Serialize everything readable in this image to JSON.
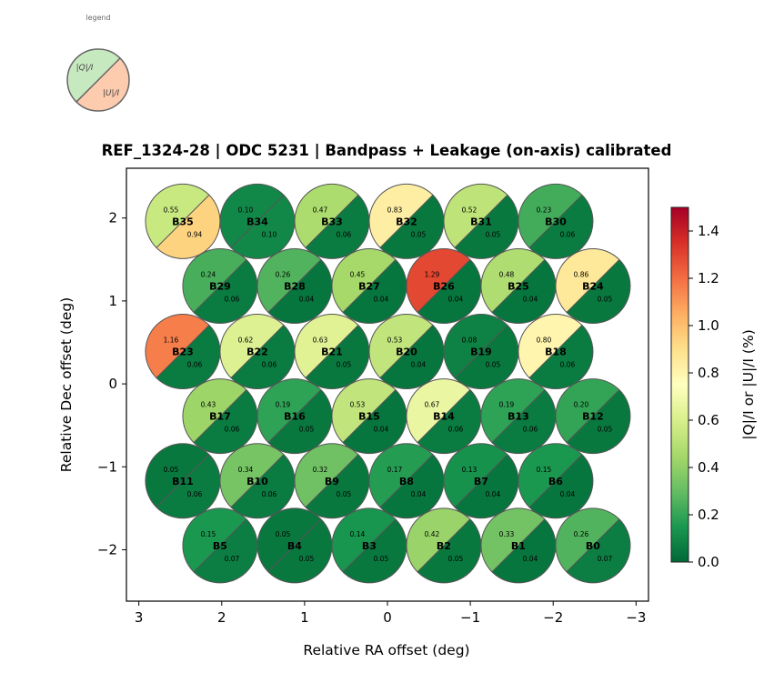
{
  "chart_data": {
    "type": "scatter",
    "title": "REF_1324-28  |  ODC 5231  |  Bandpass + Leakage (on-axis) calibrated",
    "xlabel": "Relative RA offset (deg)",
    "ylabel": "Relative Dec offset (deg)",
    "xlim": [
      3.15,
      -3.15
    ],
    "ylim": [
      -2.62,
      2.6
    ],
    "xticks": [
      3,
      2,
      1,
      0,
      -1,
      -2,
      -3
    ],
    "xtick_labels": [
      "3",
      "2",
      "1",
      "0",
      "−1",
      "−2",
      "−3"
    ],
    "yticks": [
      2,
      1,
      0,
      -1,
      -2
    ],
    "ytick_labels": [
      "2",
      "1",
      "0",
      "−1",
      "−2"
    ],
    "grid": false,
    "beam_radius_deg": 0.45,
    "colorbar": {
      "label": "|Q|/I  or  |U|/I  (%)",
      "colormap": "RdYlGn_r",
      "range": [
        0.0,
        1.5
      ],
      "ticks": [
        0.0,
        0.2,
        0.4,
        0.6,
        0.8,
        1.0,
        1.2,
        1.4
      ],
      "tick_labels": [
        "0.0",
        "0.2",
        "0.4",
        "0.6",
        "0.8",
        "1.0",
        "1.2",
        "1.4"
      ],
      "placement": "right"
    },
    "legend": {
      "title": "legend",
      "upper_label": "|Q|/I",
      "lower_label": "|U|/I",
      "upper_color": "#c7e9c0",
      "lower_color": "#fdcbae",
      "placement": "top-left"
    },
    "beams": [
      {
        "name": "B35",
        "ra": 2.47,
        "dec": 1.96,
        "q": 0.55,
        "u": 0.94
      },
      {
        "name": "B34",
        "ra": 1.57,
        "dec": 1.96,
        "q": 0.1,
        "u": 0.1
      },
      {
        "name": "B33",
        "ra": 0.67,
        "dec": 1.96,
        "q": 0.47,
        "u": 0.06
      },
      {
        "name": "B32",
        "ra": -0.23,
        "dec": 1.96,
        "q": 0.83,
        "u": 0.05
      },
      {
        "name": "B31",
        "ra": -1.13,
        "dec": 1.96,
        "q": 0.52,
        "u": 0.05
      },
      {
        "name": "B30",
        "ra": -2.03,
        "dec": 1.96,
        "q": 0.23,
        "u": 0.06
      },
      {
        "name": "B29",
        "ra": 2.02,
        "dec": 1.18,
        "q": 0.24,
        "u": 0.06
      },
      {
        "name": "B28",
        "ra": 1.12,
        "dec": 1.18,
        "q": 0.26,
        "u": 0.04
      },
      {
        "name": "B27",
        "ra": 0.22,
        "dec": 1.18,
        "q": 0.45,
        "u": 0.04
      },
      {
        "name": "B26",
        "ra": -0.68,
        "dec": 1.18,
        "q": 1.29,
        "u": 0.04
      },
      {
        "name": "B25",
        "ra": -1.58,
        "dec": 1.18,
        "q": 0.48,
        "u": 0.04
      },
      {
        "name": "B24",
        "ra": -2.48,
        "dec": 1.18,
        "q": 0.86,
        "u": 0.05
      },
      {
        "name": "B23",
        "ra": 2.47,
        "dec": 0.39,
        "q": 1.16,
        "u": 0.06
      },
      {
        "name": "B22",
        "ra": 1.57,
        "dec": 0.39,
        "q": 0.62,
        "u": 0.06
      },
      {
        "name": "B21",
        "ra": 0.67,
        "dec": 0.39,
        "q": 0.63,
        "u": 0.05
      },
      {
        "name": "B20",
        "ra": -0.23,
        "dec": 0.39,
        "q": 0.53,
        "u": 0.04
      },
      {
        "name": "B19",
        "ra": -1.13,
        "dec": 0.39,
        "q": 0.08,
        "u": 0.05
      },
      {
        "name": "B18",
        "ra": -2.03,
        "dec": 0.39,
        "q": 0.8,
        "u": 0.06
      },
      {
        "name": "B17",
        "ra": 2.02,
        "dec": -0.39,
        "q": 0.43,
        "u": 0.06
      },
      {
        "name": "B16",
        "ra": 1.12,
        "dec": -0.39,
        "q": 0.19,
        "u": 0.05
      },
      {
        "name": "B15",
        "ra": 0.22,
        "dec": -0.39,
        "q": 0.53,
        "u": 0.04
      },
      {
        "name": "B14",
        "ra": -0.68,
        "dec": -0.39,
        "q": 0.67,
        "u": 0.06
      },
      {
        "name": "B13",
        "ra": -1.58,
        "dec": -0.39,
        "q": 0.19,
        "u": 0.06
      },
      {
        "name": "B12",
        "ra": -2.48,
        "dec": -0.39,
        "q": 0.2,
        "u": 0.05
      },
      {
        "name": "B11",
        "ra": 2.47,
        "dec": -1.17,
        "q": 0.05,
        "u": 0.06
      },
      {
        "name": "B10",
        "ra": 1.57,
        "dec": -1.17,
        "q": 0.34,
        "u": 0.06
      },
      {
        "name": "B9",
        "ra": 0.67,
        "dec": -1.17,
        "q": 0.32,
        "u": 0.05
      },
      {
        "name": "B8",
        "ra": -0.23,
        "dec": -1.17,
        "q": 0.17,
        "u": 0.04
      },
      {
        "name": "B7",
        "ra": -1.13,
        "dec": -1.17,
        "q": 0.13,
        "u": 0.04
      },
      {
        "name": "B6",
        "ra": -2.03,
        "dec": -1.17,
        "q": 0.15,
        "u": 0.04
      },
      {
        "name": "B5",
        "ra": 2.02,
        "dec": -1.95,
        "q": 0.15,
        "u": 0.07
      },
      {
        "name": "B4",
        "ra": 1.12,
        "dec": -1.95,
        "q": 0.05,
        "u": 0.05
      },
      {
        "name": "B3",
        "ra": 0.22,
        "dec": -1.95,
        "q": 0.14,
        "u": 0.05
      },
      {
        "name": "B2",
        "ra": -0.68,
        "dec": -1.95,
        "q": 0.42,
        "u": 0.05
      },
      {
        "name": "B1",
        "ra": -1.58,
        "dec": -1.95,
        "q": 0.33,
        "u": 0.04
      },
      {
        "name": "B0",
        "ra": -2.48,
        "dec": -1.95,
        "q": 0.26,
        "u": 0.07
      }
    ]
  }
}
